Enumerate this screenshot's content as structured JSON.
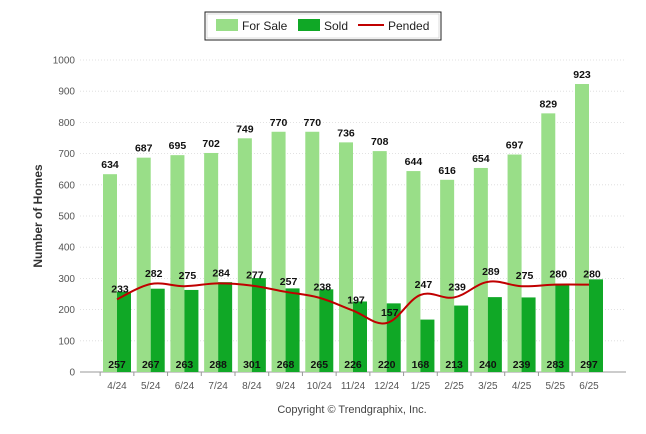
{
  "chart_data": {
    "type": "bar",
    "ylabel": "Number of Homes",
    "ylim": [
      0,
      1000
    ],
    "yticks": [
      0,
      100,
      200,
      300,
      400,
      500,
      600,
      700,
      800,
      900,
      1000
    ],
    "grid": true,
    "legend_position": "top-center",
    "categories": [
      "4/24",
      "5/24",
      "6/24",
      "7/24",
      "8/24",
      "9/24",
      "10/24",
      "11/24",
      "12/24",
      "1/25",
      "2/25",
      "3/25",
      "4/25",
      "5/25",
      "6/25"
    ],
    "series": [
      {
        "name": "For Sale",
        "kind": "bar",
        "color": "#99de88",
        "values": [
          634,
          687,
          695,
          702,
          749,
          770,
          770,
          736,
          708,
          644,
          616,
          654,
          697,
          829,
          923
        ]
      },
      {
        "name": "Sold",
        "kind": "bar",
        "color": "#10a826",
        "values": [
          257,
          267,
          263,
          288,
          301,
          268,
          265,
          226,
          220,
          168,
          213,
          240,
          239,
          283,
          297
        ]
      },
      {
        "name": "Pended",
        "kind": "line",
        "color": "#c00000",
        "values": [
          233,
          282,
          275,
          284,
          277,
          257,
          238,
          197,
          157,
          247,
          239,
          289,
          275,
          280,
          280
        ]
      }
    ]
  },
  "footer": {
    "copyright": "Copyright © Trendgraphix, Inc."
  }
}
